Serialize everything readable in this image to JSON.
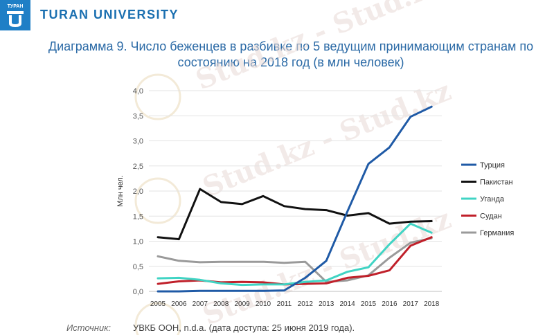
{
  "header": {
    "logo_small_text": "ТУРАН",
    "university_name": "TURAN UNIVERSITY",
    "brand_color": "#1f7fc6"
  },
  "title": {
    "line1": "Диаграмма 9. Число беженцев в разбивке по 5 ведущим принимающим странам по",
    "line2": "состоянию на 2018 год (в млн человек)"
  },
  "watermarks": [
    "Stud.kz - Stud.kz",
    "Stud.kz - Stud.kz",
    "Stud.kz - Stud.kz"
  ],
  "source": {
    "label": "Источник:",
    "text": "УВКБ ООН, n.d.a. (дата доступа: 25 июня 2019 года)."
  },
  "chart_data": {
    "type": "line",
    "title": "Диаграмма 9. Число беженцев в разбивке по 5 ведущим принимающим странам по состоянию на 2018 год (в млн человек)",
    "xlabel": "",
    "ylabel": "Млн чел.",
    "ylim": [
      0,
      4
    ],
    "yticks": [
      "0,0",
      "0,5",
      "1,0",
      "1,5",
      "2,0",
      "2,5",
      "3,0",
      "3,5",
      "4,0"
    ],
    "yticks_values": [
      0,
      0.5,
      1.0,
      1.5,
      2.0,
      2.5,
      3.0,
      3.5,
      4.0
    ],
    "grid": true,
    "legend_position": "right",
    "x": [
      "2005",
      "2006",
      "2007",
      "2008",
      "2009",
      "2010",
      "2011",
      "2012",
      "2013",
      "2014",
      "2015",
      "2016",
      "2017",
      "2018"
    ],
    "series": [
      {
        "name": "Турция",
        "color": "#1f5aa6",
        "values": [
          0.0,
          0.0,
          0.01,
          0.01,
          0.01,
          0.01,
          0.02,
          0.27,
          0.61,
          1.59,
          2.54,
          2.87,
          3.48,
          3.68
        ]
      },
      {
        "name": "Пакистан",
        "color": "#111111",
        "values": [
          1.08,
          1.04,
          2.04,
          1.78,
          1.74,
          1.9,
          1.7,
          1.64,
          1.62,
          1.51,
          1.56,
          1.35,
          1.39,
          1.4
        ]
      },
      {
        "name": "Уганда",
        "color": "#40d4c4",
        "values": [
          0.26,
          0.27,
          0.23,
          0.16,
          0.13,
          0.14,
          0.14,
          0.19,
          0.22,
          0.39,
          0.48,
          0.94,
          1.35,
          1.17
        ]
      },
      {
        "name": "Судан",
        "color": "#c0202a",
        "values": [
          0.15,
          0.2,
          0.22,
          0.18,
          0.19,
          0.18,
          0.14,
          0.15,
          0.16,
          0.27,
          0.31,
          0.42,
          0.91,
          1.08
        ]
      },
      {
        "name": "Германия",
        "color": "#9a9a9a",
        "values": [
          0.7,
          0.61,
          0.58,
          0.59,
          0.59,
          0.59,
          0.57,
          0.59,
          0.19,
          0.22,
          0.32,
          0.67,
          0.97,
          1.06
        ]
      }
    ]
  }
}
